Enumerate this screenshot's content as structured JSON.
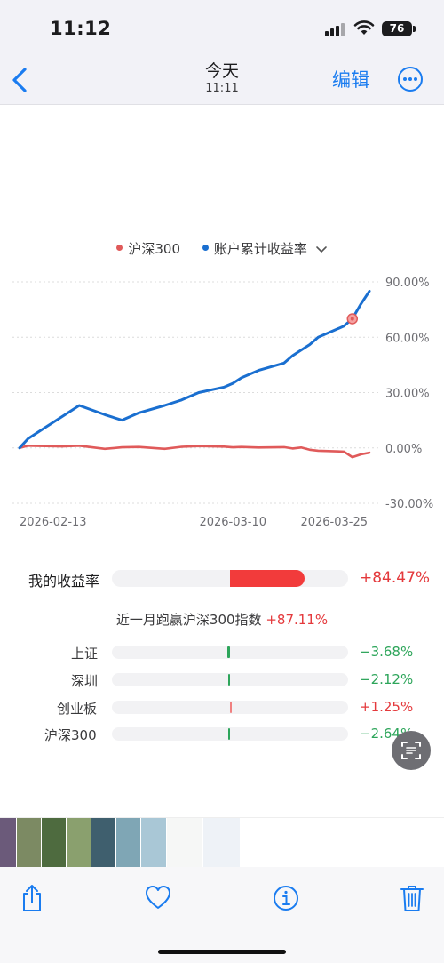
{
  "status_bar": {
    "time": "11:12",
    "battery": "76"
  },
  "nav": {
    "title": "今天",
    "subtitle": "11:11",
    "edit_label": "编辑"
  },
  "legend": [
    {
      "label": "沪深300",
      "color": "#e05a5a"
    },
    {
      "label": "账户累计收益率",
      "color": "#1a6fd0"
    }
  ],
  "chart_data": {
    "type": "line",
    "x": [
      "2026-02-13",
      "2026-02-14",
      "2026-02-16",
      "2026-02-18",
      "2026-02-20",
      "2026-02-23",
      "2026-02-25",
      "2026-02-27",
      "2026-03-02",
      "2026-03-04",
      "2026-03-06",
      "2026-03-09",
      "2026-03-10",
      "2026-03-11",
      "2026-03-13",
      "2026-03-16",
      "2026-03-17",
      "2026-03-18",
      "2026-03-19",
      "2026-03-20",
      "2026-03-23",
      "2026-03-24",
      "2026-03-25",
      "2026-03-26"
    ],
    "x_ticks": [
      "2026-02-13",
      "2026-03-10",
      "2026-03-25"
    ],
    "y_ticks": [
      "90.00%",
      "60.00%",
      "30.00%",
      "0.00%",
      "-30.00%"
    ],
    "ylim": [
      -30,
      90
    ],
    "series": [
      {
        "name": "沪深300",
        "color": "#e05a5a",
        "values": [
          0,
          1.2,
          1.0,
          0.8,
          1.2,
          -0.5,
          0.3,
          0.5,
          -0.5,
          0.6,
          1.0,
          0.7,
          0.3,
          0.5,
          0.2,
          0.4,
          -0.3,
          0.2,
          -1.0,
          -1.5,
          -2.0,
          -5.0,
          -3.5,
          -2.6
        ]
      },
      {
        "name": "账户累计收益率",
        "color": "#1a6fd0",
        "values": [
          0,
          5,
          11,
          17,
          23,
          18,
          15,
          19,
          23,
          26,
          30,
          33,
          35,
          38,
          42,
          46,
          50,
          53,
          56,
          60,
          66,
          70,
          78,
          85
        ]
      }
    ],
    "marker": {
      "x": "2026-03-24",
      "y": 70
    }
  },
  "my_return": {
    "label": "我的收益率",
    "value": "+84.47%",
    "fraction": 0.8447,
    "color": "#f23b3b"
  },
  "beat_text": {
    "prefix": "近一月跑赢沪深300指数",
    "value": "+87.11%"
  },
  "indices": [
    {
      "label": "上证",
      "value": "−3.68%",
      "pct": -3.68,
      "color": "#2da55a",
      "class": "green"
    },
    {
      "label": "深圳",
      "value": "−2.12%",
      "pct": -2.12,
      "color": "#2da55a",
      "class": "green"
    },
    {
      "label": "创业板",
      "value": "+1.25%",
      "pct": 1.25,
      "color": "#f08080",
      "class": "red"
    },
    {
      "label": "沪深300",
      "value": "−2.64%",
      "pct": -2.64,
      "color": "#2da55a",
      "class": "green"
    }
  ],
  "thumbnails": [
    {
      "color": "#6b5a7a"
    },
    {
      "color": "#7c8a63"
    },
    {
      "color": "#4e6b3f"
    },
    {
      "color": "#8aa06e"
    },
    {
      "color": "#3f5f6e"
    },
    {
      "color": "#7fa6b5"
    },
    {
      "color": "#a9c7d6"
    },
    {
      "color": "#f6f7f6"
    },
    {
      "color": "#eef2f7"
    }
  ],
  "toolbar": {
    "icons": [
      "share-icon",
      "heart-icon",
      "info-icon",
      "trash-icon"
    ]
  }
}
